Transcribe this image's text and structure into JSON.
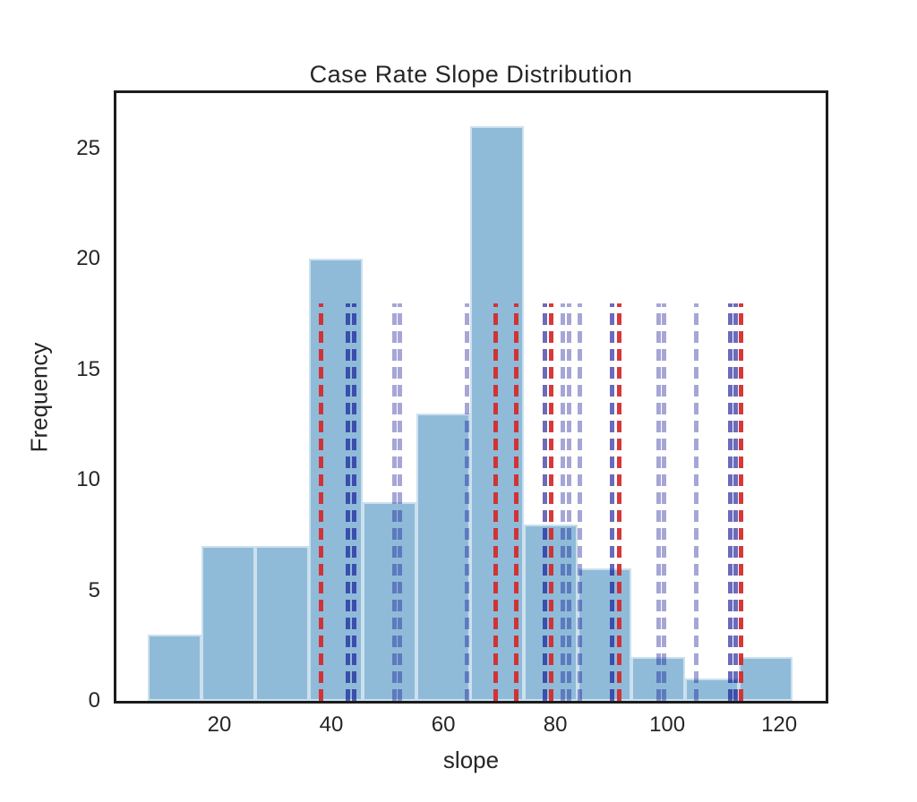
{
  "chart_data": {
    "type": "bar",
    "subtype": "histogram",
    "title": "Case Rate Slope Distribution",
    "xlabel": "slope",
    "ylabel": "Frequency",
    "xlim": [
      1.6,
      128.3
    ],
    "ylim": [
      0,
      27.5
    ],
    "x_ticks": [
      20,
      40,
      60,
      80,
      100,
      120
    ],
    "y_ticks": [
      0,
      5,
      10,
      15,
      20,
      25
    ],
    "grid": false,
    "legend": false,
    "bin_edges": [
      7.2,
      16.8,
      26.4,
      36.0,
      45.6,
      55.2,
      64.8,
      74.4,
      84.0,
      93.6,
      103.2,
      112.8,
      122.4
    ],
    "frequencies": [
      3,
      7,
      7,
      20,
      9,
      13,
      26,
      8,
      6,
      2,
      1,
      2
    ],
    "bar_color": "rgba(31,119,180,0.5)",
    "vlines": {
      "top_value": 18,
      "red": {
        "color": "rgba(214,39,40,0.92)",
        "positions": [
          38.1,
          69.3,
          73.1,
          79.2,
          91.4,
          113.1
        ]
      },
      "blue_light": {
        "color": "rgba(0,0,139,0.35)",
        "positions": [
          51.2,
          52.2,
          64.2,
          81.3,
          82.4,
          84.3,
          98.4,
          99.4,
          105.1
        ]
      },
      "blue_dark": {
        "color": "rgba(0,0,139,0.58)",
        "positions": [
          42.9,
          44.0,
          78.1,
          90.2,
          111.2,
          112.2
        ]
      }
    }
  }
}
